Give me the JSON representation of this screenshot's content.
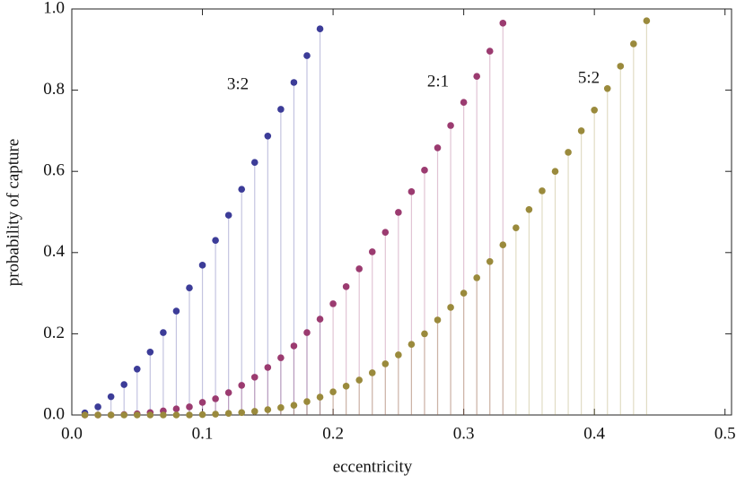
{
  "chart_data": {
    "type": "stem",
    "x_label": "eccentricity",
    "y_label": "probability of capture",
    "xlim": [
      0,
      0.505
    ],
    "ylim": [
      0,
      1.0
    ],
    "xticks": [
      {
        "value": 0,
        "label": "0.0"
      },
      0.1,
      0.2,
      0.3,
      0.4,
      0.5
    ],
    "yticks": [
      {
        "value": 0,
        "label": "0.0"
      },
      0.2,
      0.4,
      0.6,
      0.8,
      {
        "value": 1,
        "label": "1.0"
      }
    ],
    "series": [
      {
        "name": "3:2",
        "color": "#3c3c98",
        "x": [
          0.01,
          0.02,
          0.03,
          0.04,
          0.05,
          0.06,
          0.07,
          0.08,
          0.09,
          0.1,
          0.11,
          0.12,
          0.13,
          0.14,
          0.15,
          0.16,
          0.17,
          0.18,
          0.19
        ],
        "values": [
          0.005,
          0.02,
          0.045,
          0.075,
          0.113,
          0.155,
          0.203,
          0.256,
          0.313,
          0.369,
          0.43,
          0.492,
          0.556,
          0.622,
          0.687,
          0.753,
          0.819,
          0.885,
          0.951
        ]
      },
      {
        "name": "2:1",
        "color": "#9b3b70",
        "x": [
          0.01,
          0.02,
          0.03,
          0.04,
          0.05,
          0.06,
          0.07,
          0.08,
          0.09,
          0.1,
          0.11,
          0.12,
          0.13,
          0.14,
          0.15,
          0.16,
          0.17,
          0.18,
          0.19,
          0.2,
          0.21,
          0.22,
          0.23,
          0.24,
          0.25,
          0.26,
          0.27,
          0.28,
          0.29,
          0.3,
          0.31,
          0.32,
          0.33
        ],
        "values": [
          0,
          0,
          0,
          0.001,
          0.003,
          0.006,
          0.01,
          0.015,
          0.02,
          0.031,
          0.04,
          0.055,
          0.073,
          0.093,
          0.117,
          0.141,
          0.17,
          0.203,
          0.236,
          0.274,
          0.316,
          0.36,
          0.402,
          0.45,
          0.499,
          0.55,
          0.603,
          0.658,
          0.713,
          0.77,
          0.834,
          0.896,
          0.965
        ]
      },
      {
        "name": "5:2",
        "color": "#9a8a3c",
        "x": [
          0.01,
          0.02,
          0.03,
          0.04,
          0.05,
          0.06,
          0.07,
          0.08,
          0.09,
          0.1,
          0.11,
          0.12,
          0.13,
          0.14,
          0.15,
          0.16,
          0.17,
          0.18,
          0.19,
          0.2,
          0.21,
          0.22,
          0.23,
          0.24,
          0.25,
          0.26,
          0.27,
          0.28,
          0.29,
          0.3,
          0.31,
          0.32,
          0.33,
          0.34,
          0.35,
          0.36,
          0.37,
          0.38,
          0.39,
          0.4,
          0.41,
          0.42,
          0.43,
          0.44
        ],
        "values": [
          0,
          0,
          0,
          0,
          0,
          0,
          0,
          0,
          0,
          0.001,
          0.002,
          0.004,
          0.006,
          0.009,
          0.013,
          0.018,
          0.024,
          0.033,
          0.044,
          0.057,
          0.071,
          0.086,
          0.104,
          0.126,
          0.148,
          0.174,
          0.2,
          0.234,
          0.265,
          0.3,
          0.338,
          0.378,
          0.419,
          0.461,
          0.506,
          0.552,
          0.6,
          0.647,
          0.7,
          0.751,
          0.804,
          0.859,
          0.914,
          0.971
        ]
      }
    ]
  }
}
